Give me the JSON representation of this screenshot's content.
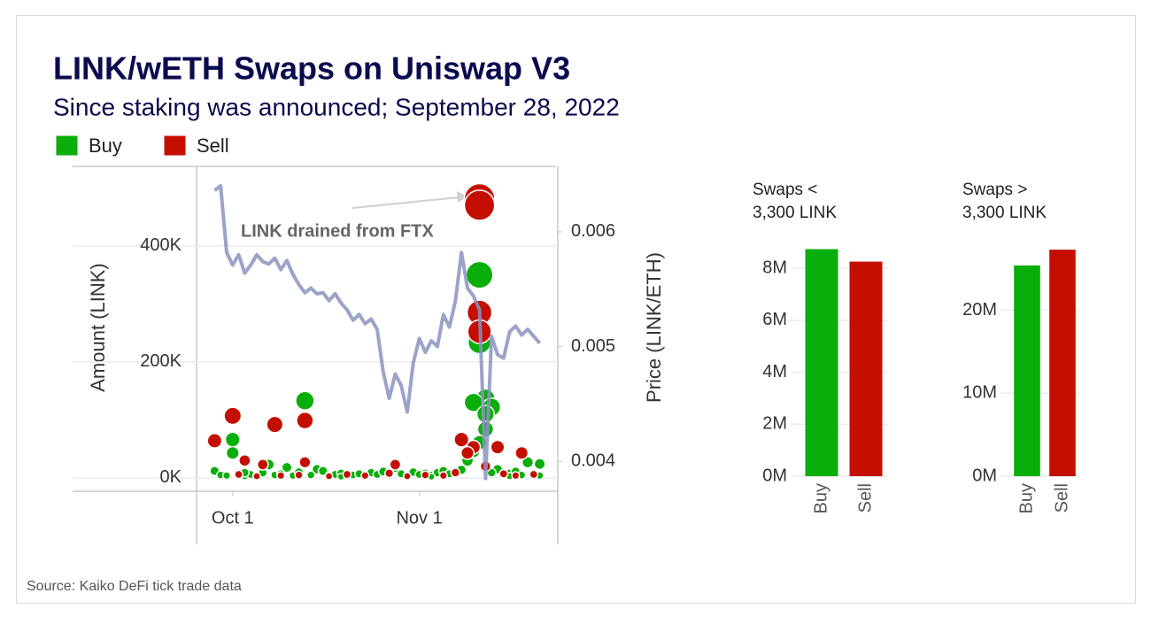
{
  "title": "LINK/wETH Swaps on Uniswap V3",
  "subtitle": "Since staking was announced; September 28, 2022",
  "source": "Source: Kaiko DeFi tick trade data",
  "chart_data": [
    {
      "type": "scatter",
      "ylabel": "Amount (LINK)",
      "y2label": "Price (LINK/ETH)",
      "annotation": "LINK drained from FTX",
      "xlim": [
        "Sep 25",
        "Nov 24"
      ],
      "xticks": [
        "Oct 1",
        "Nov 1"
      ],
      "ylim": [
        -23000,
        537000
      ],
      "yticks": [
        {
          "value": 0,
          "label": "0K"
        },
        {
          "value": 200000,
          "label": "200K"
        },
        {
          "value": 400000,
          "label": "400K"
        }
      ],
      "y2lim": [
        0.00374,
        0.00657
      ],
      "y2ticks": [
        0.004,
        0.005,
        0.006
      ],
      "grid": true,
      "legend": "top-left",
      "series": [
        {
          "name": "Buy",
          "color": "#0aae0a",
          "x": [
            "Nov 11",
            "Nov 11",
            "Nov 12",
            "Oct 13",
            "Nov 10",
            "Nov 13",
            "Nov 12",
            "Nov 12",
            "Oct 1",
            "Nov 11",
            "Nov 10",
            "Oct 1",
            "Nov 9",
            "Nov 19",
            "Nov 21",
            "Oct 7",
            "Oct 10",
            "Oct 28",
            "Oct 15",
            "Nov 14",
            "Sep 28",
            "Sep 29",
            "Sep 30",
            "Oct 2",
            "Oct 3",
            "Oct 4",
            "Oct 5",
            "Oct 6",
            "Oct 8",
            "Oct 9",
            "Oct 11",
            "Oct 12",
            "Oct 14",
            "Oct 16",
            "Oct 17",
            "Oct 18",
            "Oct 19",
            "Oct 20",
            "Oct 21",
            "Oct 22",
            "Oct 23",
            "Oct 24",
            "Oct 25",
            "Oct 26",
            "Oct 27",
            "Oct 29",
            "Oct 30",
            "Oct 31",
            "Nov 1",
            "Nov 2",
            "Nov 3",
            "Nov 4",
            "Nov 5",
            "Nov 6",
            "Nov 7",
            "Nov 8",
            "Nov 13",
            "Nov 15",
            "Nov 16",
            "Nov 17",
            "Nov 18",
            "Nov 20",
            "Nov 21",
            "Oct 3",
            "Oct 19",
            "Nov 3",
            "Nov 16"
          ],
          "values": [
            350000,
            234000,
            137000,
            133000,
            130000,
            122000,
            110000,
            84000,
            66000,
            61000,
            46000,
            43000,
            30000,
            27000,
            24000,
            23000,
            18000,
            18000,
            15000,
            15000,
            12000,
            5000,
            4000,
            8000,
            3000,
            6000,
            4000,
            9000,
            5000,
            7000,
            4000,
            10000,
            5000,
            12000,
            4000,
            6000,
            8000,
            3000,
            5000,
            7000,
            4000,
            9000,
            6000,
            11000,
            5000,
            7000,
            4000,
            10000,
            6000,
            8000,
            5000,
            9000,
            12000,
            7000,
            10000,
            14000,
            9000,
            6000,
            8000,
            11000,
            5000,
            7000,
            4000,
            9000,
            2000,
            2000,
            3000
          ]
        },
        {
          "name": "Sell",
          "color": "#c40f00",
          "x": [
            "Nov 11",
            "Nov 11",
            "Nov 11",
            "Nov 11",
            "Oct 1",
            "Oct 13",
            "Oct 8",
            "Sep 28",
            "Nov 8",
            "Nov 10",
            "Nov 14",
            "Nov 18",
            "Nov 9",
            "Oct 3",
            "Oct 13",
            "Oct 6",
            "Oct 28",
            "Oct 2",
            "Oct 5",
            "Oct 9",
            "Oct 12",
            "Oct 17",
            "Oct 20",
            "Oct 23",
            "Oct 27",
            "Oct 30",
            "Nov 2",
            "Nov 5",
            "Nov 7",
            "Nov 12",
            "Nov 15",
            "Nov 17",
            "Nov 20"
          ],
          "values": [
            481000,
            470000,
            285000,
            252000,
            107000,
            99000,
            92000,
            64000,
            66000,
            53000,
            53000,
            43000,
            43000,
            30000,
            27000,
            23000,
            23000,
            6000,
            3000,
            4000,
            5000,
            3000,
            6000,
            4000,
            8000,
            3000,
            5000,
            4000,
            9000,
            20000,
            7000,
            4000,
            6000
          ]
        },
        {
          "type": "line",
          "axis": "y2",
          "color": "#8a93c0",
          "x": [
            "Sep 28",
            "Sep 29",
            "Sep 30",
            "Oct 1",
            "Oct 2",
            "Oct 3",
            "Oct 4",
            "Oct 5",
            "Oct 6",
            "Oct 7",
            "Oct 8",
            "Oct 9",
            "Oct 10",
            "Oct 11",
            "Oct 12",
            "Oct 13",
            "Oct 14",
            "Oct 15",
            "Oct 16",
            "Oct 17",
            "Oct 18",
            "Oct 19",
            "Oct 20",
            "Oct 21",
            "Oct 22",
            "Oct 23",
            "Oct 24",
            "Oct 25",
            "Oct 26",
            "Oct 27",
            "Oct 28",
            "Oct 29",
            "Oct 30",
            "Oct 31",
            "Nov 1",
            "Nov 2",
            "Nov 3",
            "Nov 4",
            "Nov 5",
            "Nov 6",
            "Nov 7",
            "Nov 8",
            "Nov 9",
            "Nov 10",
            "Nov 11",
            "Nov 12",
            "Nov 13",
            "Nov 14",
            "Nov 15",
            "Nov 16",
            "Nov 17",
            "Nov 18",
            "Nov 19",
            "Nov 20",
            "Nov 21"
          ],
          "values": [
            0.00636,
            0.0064,
            0.00582,
            0.00571,
            0.0058,
            0.00564,
            0.00571,
            0.0058,
            0.00574,
            0.00572,
            0.00577,
            0.00567,
            0.00575,
            0.00563,
            0.00554,
            0.00547,
            0.00551,
            0.00546,
            0.00547,
            0.0054,
            0.00546,
            0.00538,
            0.00532,
            0.00523,
            0.00528,
            0.0052,
            0.00524,
            0.00515,
            0.00478,
            0.00455,
            0.00476,
            0.00466,
            0.00443,
            0.00486,
            0.00507,
            0.00495,
            0.00505,
            0.005,
            0.00528,
            0.00517,
            0.0054,
            0.00582,
            0.00551,
            0.00544,
            0.00532,
            0.00385,
            0.00509,
            0.00493,
            0.0049,
            0.00513,
            0.00518,
            0.0051,
            0.00515,
            0.00509,
            0.00503
          ]
        }
      ]
    },
    {
      "type": "bar",
      "title": [
        "Swaps <",
        "3,300 LINK"
      ],
      "categories": [
        "Buy",
        "Sell"
      ],
      "values": [
        8740000,
        8260000
      ],
      "colors": [
        "#0aae0a",
        "#c40f00"
      ],
      "ylim": [
        0,
        9200000
      ],
      "yticks": [
        {
          "value": 0,
          "label": "0M"
        },
        {
          "value": 2000000,
          "label": "2M"
        },
        {
          "value": 4000000,
          "label": "4M"
        },
        {
          "value": 6000000,
          "label": "6M"
        },
        {
          "value": 8000000,
          "label": "8M"
        }
      ],
      "grid": true
    },
    {
      "type": "bar",
      "title": [
        "Swaps >",
        "3,300 LINK"
      ],
      "categories": [
        "Buy",
        "Sell"
      ],
      "values": [
        25400000,
        27300000
      ],
      "colors": [
        "#0aae0a",
        "#c40f00"
      ],
      "ylim": [
        0,
        28800000
      ],
      "yticks": [
        {
          "value": 0,
          "label": "0M"
        },
        {
          "value": 10000000,
          "label": "10M"
        },
        {
          "value": 20000000,
          "label": "20M"
        }
      ],
      "grid": true
    }
  ]
}
